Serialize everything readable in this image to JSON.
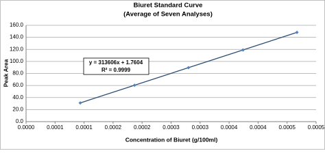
{
  "chart_data": {
    "type": "scatter",
    "title": "Biuret Standard Curve",
    "subtitle": "(Average of Seven Analyses)",
    "xlabel": "Concentration of Biuret (g/100ml)",
    "ylabel": "Peak Area",
    "series": [
      {
        "name": "Peak Area",
        "color": "#4f81bd",
        "line_color": "#2c4d75",
        "x": [
          9.35e-05,
          0.000187,
          0.00028,
          0.000374,
          0.000467
        ],
        "values": [
          31.1,
          60.4,
          89.6,
          119.0,
          148.2
        ]
      }
    ],
    "annotations": [
      "y = 313606x + 1.7604",
      "R² = 0.9999"
    ],
    "xlim": [
      0,
      0.0005
    ],
    "xticks": [
      {
        "value": 0,
        "label": "0.0000"
      },
      {
        "value": 5e-05,
        "label": "0.0001"
      },
      {
        "value": 0.0001,
        "label": "0.0001"
      },
      {
        "value": 0.00015,
        "label": "0.0002"
      },
      {
        "value": 0.0002,
        "label": "0.0002"
      },
      {
        "value": 0.00025,
        "label": "0.0003"
      },
      {
        "value": 0.0003,
        "label": "0.0003"
      },
      {
        "value": 0.00035,
        "label": "0.0004"
      },
      {
        "value": 0.0004,
        "label": "0.0004"
      },
      {
        "value": 0.00045,
        "label": "0.0005"
      },
      {
        "value": 0.0005,
        "label": "0.0005"
      }
    ],
    "ylim": [
      0,
      160
    ],
    "yticks": [
      {
        "value": 0,
        "label": "0.0"
      },
      {
        "value": 20,
        "label": "20.0"
      },
      {
        "value": 40,
        "label": "40.0"
      },
      {
        "value": 60,
        "label": "60.0"
      },
      {
        "value": 80,
        "label": "80.0"
      },
      {
        "value": 100,
        "label": "100.0"
      },
      {
        "value": 120,
        "label": "120.0"
      },
      {
        "value": 140,
        "label": "140.0"
      },
      {
        "value": 160,
        "label": "160.0"
      }
    ],
    "grid": true
  }
}
